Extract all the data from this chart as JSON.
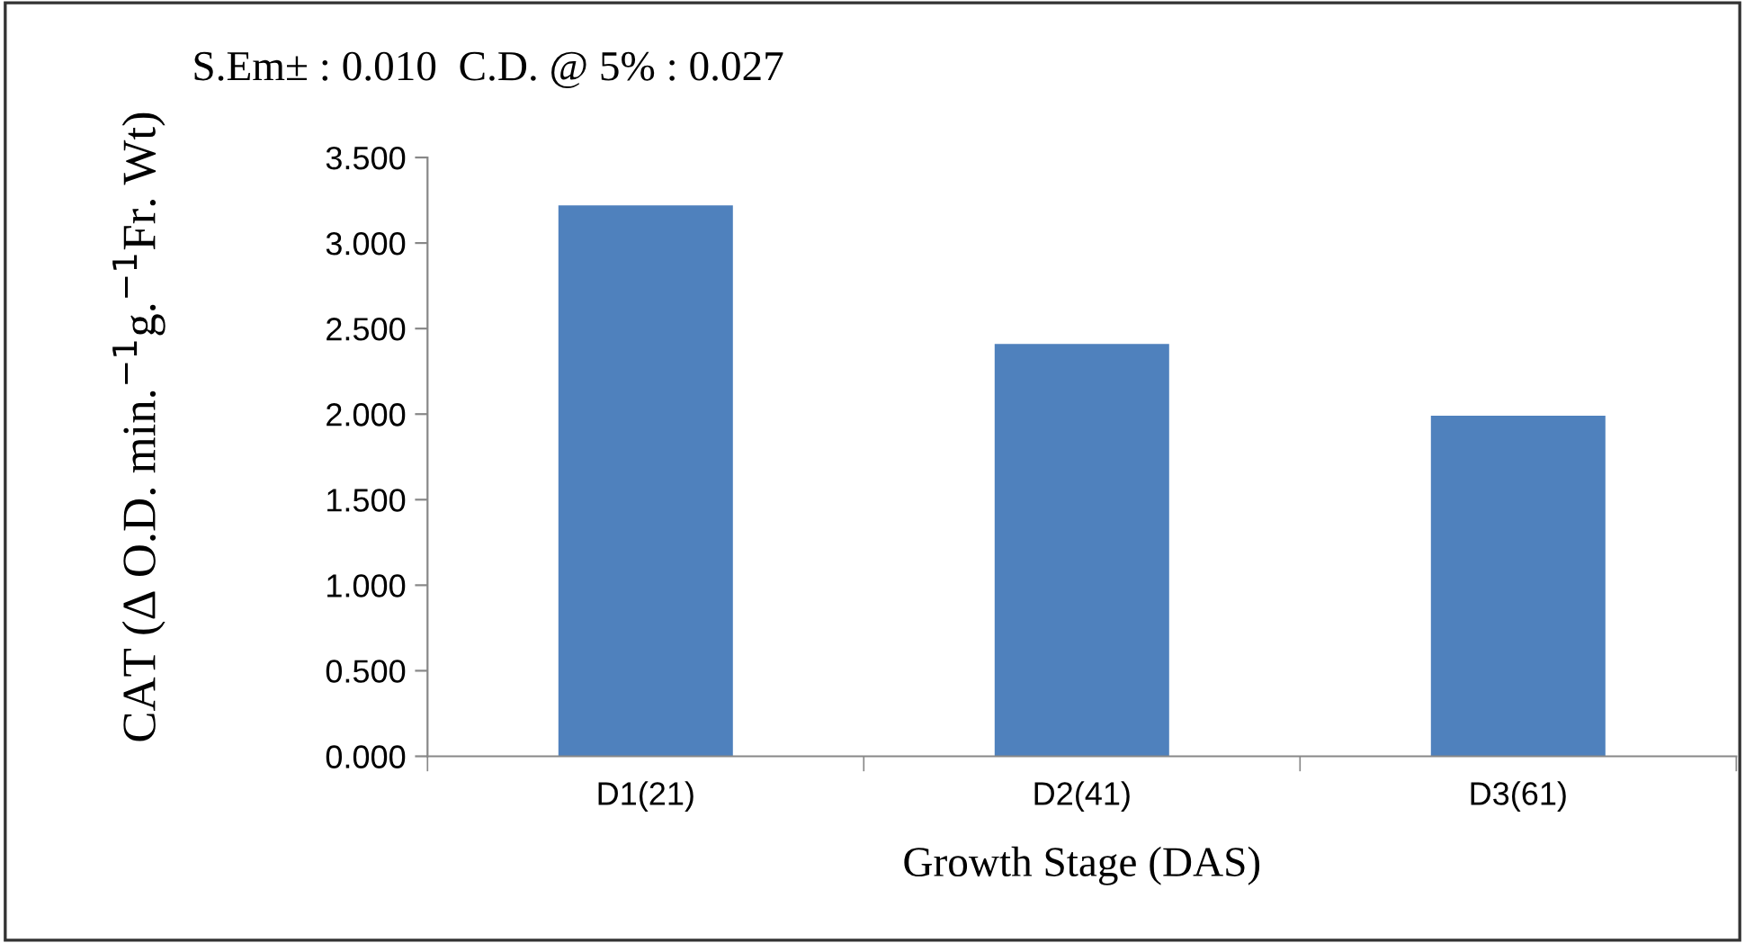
{
  "chart_data": {
    "type": "bar",
    "xlabel": "Growth Stage (DAS)",
    "ylabel": "CAT (Δ O.D. min.$^{−1}$g.$^{−1}$Fr. Wt)",
    "annotations": [
      "S.Em± : 0.010  C.D. @ 5% : 0.027"
    ],
    "categories": [
      "D1(21)",
      "D2(41)",
      "D3(61)"
    ],
    "values": [
      3.22,
      2.41,
      1.99
    ],
    "color": "#4f81bd",
    "ylim": [
      0,
      3.5
    ],
    "yticks": [
      {
        "value": 0,
        "label": "0.000"
      },
      {
        "value": 0.5,
        "label": "0.500"
      },
      {
        "value": 1,
        "label": "1.000"
      },
      {
        "value": 1.5,
        "label": "1.500"
      },
      {
        "value": 2,
        "label": "2.000"
      },
      {
        "value": 2.5,
        "label": "2.500"
      },
      {
        "value": 3,
        "label": "3.000"
      },
      {
        "value": 3.5,
        "label": "3.500"
      }
    ],
    "grid": false,
    "legend": false
  }
}
